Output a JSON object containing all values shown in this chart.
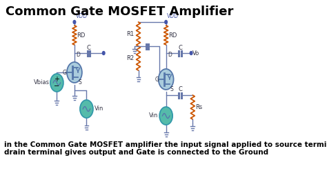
{
  "title": "Common Gate MOSFET Amplifier",
  "title_fontsize": 13,
  "title_fontweight": "bold",
  "bg_color": "#ffffff",
  "resistor_color": "#cc5500",
  "mosfet_fill": "#aaccdd",
  "mosfet_edge": "#5577aa",
  "wire_color": "#6677aa",
  "dot_color": "#4455aa",
  "vsrc_fill": "#55bbaa",
  "vsrc_edge": "#3399aa",
  "cap_color": "#6677aa",
  "label_color": "#333344",
  "caption_line1": "in the Common Gate MOSFET amplifier the input signal applied to source terminal,",
  "caption_line2": "drain terminal gives output and Gate is connected to the Ground",
  "caption_fontsize": 7.5,
  "caption_fontweight": "bold"
}
